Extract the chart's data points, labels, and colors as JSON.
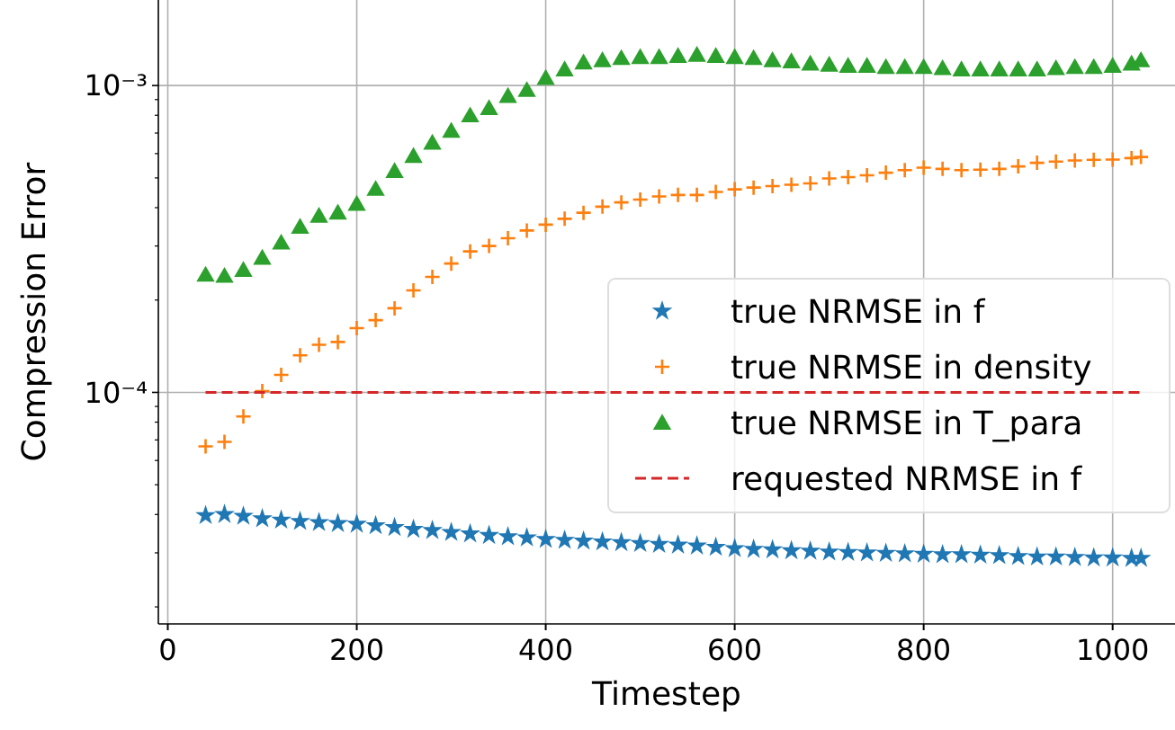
{
  "chart_data": {
    "type": "scatter",
    "xlabel": "Timestep",
    "ylabel": "Compression Error",
    "log": "y",
    "grid": true,
    "legend": "right",
    "x": [
      40,
      60,
      80,
      100,
      120,
      140,
      160,
      180,
      200,
      220,
      240,
      260,
      280,
      300,
      320,
      340,
      360,
      380,
      400,
      420,
      440,
      460,
      480,
      500,
      520,
      540,
      560,
      580,
      600,
      620,
      640,
      660,
      680,
      700,
      720,
      740,
      760,
      780,
      800,
      820,
      840,
      860,
      880,
      900,
      920,
      940,
      960,
      980,
      1000,
      1020,
      1030
    ],
    "xlim": [
      -10,
      1066
    ],
    "xticks": [
      0,
      200,
      400,
      600,
      800,
      1000
    ],
    "ylim": [
      1.76e-05,
      0.0019
    ],
    "yticks": [
      {
        "value": 2e-05,
        "label": null
      },
      {
        "value": 3e-05,
        "label": null
      },
      {
        "value": 4e-05,
        "label": null
      },
      {
        "value": 5e-05,
        "label": null
      },
      {
        "value": 6e-05,
        "label": null
      },
      {
        "value": 7e-05,
        "label": null
      },
      {
        "value": 8e-05,
        "label": null
      },
      {
        "value": 9e-05,
        "label": null
      },
      {
        "value": 0.0001,
        "label": "10⁻⁴"
      },
      {
        "value": 0.0002,
        "label": null
      },
      {
        "value": 0.0003,
        "label": null
      },
      {
        "value": 0.0004,
        "label": null
      },
      {
        "value": 0.0005,
        "label": null
      },
      {
        "value": 0.0006,
        "label": null
      },
      {
        "value": 0.0007,
        "label": null
      },
      {
        "value": 0.0008,
        "label": null
      },
      {
        "value": 0.0009,
        "label": null
      },
      {
        "value": 0.001,
        "label": "10⁻³"
      }
    ],
    "series": [
      {
        "name": "true NRMSE in f",
        "color": "#1f77b4",
        "marker": "star",
        "values": [
          3.97e-05,
          4e-05,
          3.95e-05,
          3.88e-05,
          3.84e-05,
          3.8e-05,
          3.77e-05,
          3.74e-05,
          3.72e-05,
          3.68e-05,
          3.63e-05,
          3.58e-05,
          3.55e-05,
          3.5e-05,
          3.46e-05,
          3.42e-05,
          3.39e-05,
          3.36e-05,
          3.32e-05,
          3.3e-05,
          3.28e-05,
          3.26e-05,
          3.24e-05,
          3.22e-05,
          3.2e-05,
          3.18e-05,
          3.16e-05,
          3.13e-05,
          3.1e-05,
          3.08e-05,
          3.07e-05,
          3.05e-05,
          3.04e-05,
          3.02e-05,
          3.01e-05,
          3e-05,
          2.99e-05,
          2.98e-05,
          2.97e-05,
          2.96e-05,
          2.96e-05,
          2.95e-05,
          2.94e-05,
          2.92e-05,
          2.91e-05,
          2.91e-05,
          2.9e-05,
          2.89e-05,
          2.89e-05,
          2.88e-05,
          2.88e-05
        ]
      },
      {
        "name": "true NRMSE in density",
        "color": "#ff7f0e",
        "marker": "cross",
        "values": [
          6.67e-05,
          6.9e-05,
          8.35e-05,
          0.000101,
          0.000114,
          0.000132,
          0.000143,
          0.000146,
          0.000162,
          0.000172,
          0.000188,
          0.000215,
          0.000238,
          0.000263,
          0.000288,
          0.0003,
          0.000318,
          0.000337,
          0.000352,
          0.000368,
          0.000385,
          0.000403,
          0.000416,
          0.000425,
          0.000435,
          0.00044,
          0.00044,
          0.00045,
          0.000459,
          0.000465,
          0.00047,
          0.000475,
          0.00048,
          0.000498,
          0.000503,
          0.00051,
          0.00052,
          0.00053,
          0.00054,
          0.000535,
          0.00053,
          0.000532,
          0.000535,
          0.000545,
          0.00056,
          0.000565,
          0.00057,
          0.000573,
          0.000574,
          0.00058,
          0.000585
        ]
      },
      {
        "name": "true NRMSE in T_para",
        "color": "#2ca02c",
        "marker": "triangle",
        "values": [
          0.000242,
          0.00024,
          0.000251,
          0.000275,
          0.000308,
          0.000347,
          0.000377,
          0.000386,
          0.000412,
          0.000461,
          0.000527,
          0.00059,
          0.000652,
          0.000713,
          0.0008,
          0.000845,
          0.000926,
          0.000968,
          0.00106,
          0.00113,
          0.00119,
          0.00121,
          0.00123,
          0.00124,
          0.00124,
          0.00125,
          0.00126,
          0.00125,
          0.00124,
          0.00123,
          0.00121,
          0.0012,
          0.00118,
          0.00117,
          0.00116,
          0.00116,
          0.00115,
          0.00115,
          0.00115,
          0.00114,
          0.00113,
          0.00113,
          0.00113,
          0.00113,
          0.00113,
          0.00114,
          0.00115,
          0.00115,
          0.00116,
          0.00118,
          0.00121
        ]
      },
      {
        "name": "requested NRMSE in f",
        "color": "#d62728",
        "type": "line",
        "line_style": "dashed",
        "marker": "none",
        "x": [
          40,
          1030
        ],
        "values": [
          0.0001,
          0.0001
        ]
      }
    ]
  }
}
